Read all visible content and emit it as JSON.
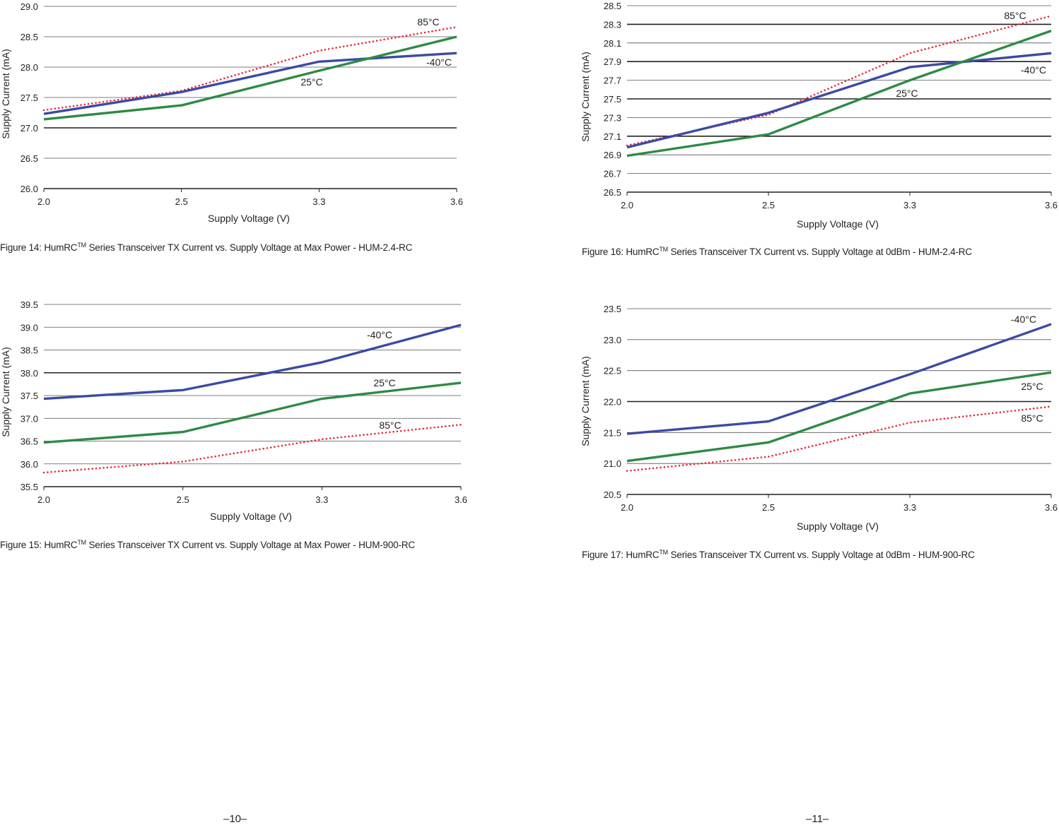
{
  "chart_data": [
    {
      "type": "line",
      "id": "fig14",
      "caption_prefix": "Figure 14: HumRC",
      "caption_sup": "TM",
      "caption_rest": " Series Transceiver TX Current vs. Supply Voltage at Max Power - HUM-2.4-RC",
      "xlabel": "Supply Voltage (V)",
      "ylabel": "Supply Current (mA)",
      "categories": [
        "2.0",
        "2.5",
        "3.3",
        "3.6"
      ],
      "ylim": [
        26.0,
        29.0
      ],
      "yticks": [
        26.0,
        26.5,
        27.0,
        27.5,
        28.0,
        28.5,
        29.0
      ],
      "ytick_labels": [
        "26.0",
        "26.5",
        "27.0",
        "27.5",
        "28.0",
        "28.5",
        "29.0"
      ],
      "bold_gridlines": [
        27.0
      ],
      "series": [
        {
          "name": "85°C",
          "label": "85°C",
          "style": "dotted",
          "color": "#e8293a",
          "values": [
            27.29,
            27.61,
            28.27,
            28.66
          ]
        },
        {
          "name": "-40°C",
          "label": "-40°C",
          "style": "solid",
          "color": "#3c4aa4",
          "values": [
            27.23,
            27.59,
            28.09,
            28.23
          ]
        },
        {
          "name": "25°C",
          "label": "25°C",
          "style": "solid",
          "color": "#2e8a45",
          "values": [
            27.14,
            27.37,
            27.94,
            28.5
          ]
        }
      ]
    },
    {
      "type": "line",
      "id": "fig15",
      "caption_prefix": "Figure 15: HumRC",
      "caption_sup": "TM",
      "caption_rest": " Series Transceiver TX Current vs. Supply Voltage at Max Power - HUM-900-RC",
      "xlabel": "Supply Voltage (V)",
      "ylabel": "Supply Current (mA)",
      "categories": [
        "2.0",
        "2.5",
        "3.3",
        "3.6"
      ],
      "ylim": [
        35.5,
        39.5
      ],
      "yticks": [
        35.5,
        36.0,
        36.5,
        37.0,
        37.5,
        38.0,
        38.5,
        39.0,
        39.5
      ],
      "ytick_labels": [
        "35.5",
        "36.0",
        "36.5",
        "37.0",
        "37.5",
        "38.0",
        "38.5",
        "39.0",
        "39.5"
      ],
      "bold_gridlines": [
        38.0
      ],
      "series": [
        {
          "name": "-40°C",
          "label": "-40°C",
          "style": "solid",
          "color": "#3c4aa4",
          "values": [
            37.43,
            37.62,
            38.23,
            39.05
          ]
        },
        {
          "name": "25°C",
          "label": "25°C",
          "style": "solid",
          "color": "#2e8a45",
          "values": [
            36.47,
            36.7,
            37.43,
            37.78
          ]
        },
        {
          "name": "85°C",
          "label": "85°C",
          "style": "dotted",
          "color": "#e8293a",
          "values": [
            35.81,
            36.05,
            36.54,
            36.86
          ]
        }
      ]
    },
    {
      "type": "line",
      "id": "fig16",
      "caption_prefix": "Figure 16: HumRC",
      "caption_sup": "TM",
      "caption_rest": " Series Transceiver TX Current vs. Supply Voltage at 0dBm - HUM-2.4-RC",
      "xlabel": "Supply Voltage (V)",
      "ylabel": "Supply Current (mA)",
      "categories": [
        "2.0",
        "2.5",
        "3.3",
        "3.6"
      ],
      "ylim": [
        26.5,
        28.5
      ],
      "yticks": [
        26.5,
        26.7,
        26.9,
        27.1,
        27.3,
        27.5,
        27.7,
        27.9,
        28.1,
        28.3,
        28.5
      ],
      "ytick_labels": [
        "26.5",
        "26.7",
        "26.9",
        "27.1",
        "27.3",
        "27.5",
        "27.7",
        "27.9",
        "28.1",
        "28.3",
        "28.5"
      ],
      "bold_gridlines": [
        27.1,
        27.5,
        27.9,
        28.3
      ],
      "series": [
        {
          "name": "85°C",
          "label": "85°C",
          "style": "dotted",
          "color": "#e8293a",
          "values": [
            27.0,
            27.33,
            27.99,
            28.39
          ]
        },
        {
          "name": "-40°C",
          "label": "-40°C",
          "style": "solid",
          "color": "#3c4aa4",
          "values": [
            26.98,
            27.35,
            27.84,
            27.99
          ]
        },
        {
          "name": "25°C",
          "label": "25°C",
          "style": "solid",
          "color": "#2e8a45",
          "values": [
            26.89,
            27.12,
            27.7,
            28.23
          ]
        }
      ]
    },
    {
      "type": "line",
      "id": "fig17",
      "caption_prefix": "Figure 17: HumRC",
      "caption_sup": "TM",
      "caption_rest": " Series Transceiver TX Current vs. Supply Voltage at 0dBm - HUM-900-RC",
      "xlabel": "Supply Voltage (V)",
      "ylabel": "Supply Current (mA)",
      "categories": [
        "2.0",
        "2.5",
        "3.3",
        "3.6"
      ],
      "ylim": [
        20.5,
        23.5
      ],
      "yticks": [
        20.5,
        21.0,
        21.5,
        22.0,
        22.5,
        23.0,
        23.5
      ],
      "ytick_labels": [
        "20.5",
        "21.0",
        "21.5",
        "22.0",
        "22.5",
        "23.0",
        "23.5"
      ],
      "bold_gridlines": [
        22.0
      ],
      "series": [
        {
          "name": "-40°C",
          "label": "-40°C",
          "style": "solid",
          "color": "#3c4aa4",
          "values": [
            21.48,
            21.68,
            22.44,
            23.25
          ]
        },
        {
          "name": "25°C",
          "label": "25°C",
          "style": "solid",
          "color": "#2e8a45",
          "values": [
            21.04,
            21.34,
            22.13,
            22.47
          ]
        },
        {
          "name": "85°C",
          "label": "85°C",
          "style": "dotted",
          "color": "#e8293a",
          "values": [
            20.88,
            21.11,
            21.66,
            21.92
          ]
        }
      ]
    }
  ],
  "page_numbers": {
    "left": "–10–",
    "right": "–11–"
  }
}
